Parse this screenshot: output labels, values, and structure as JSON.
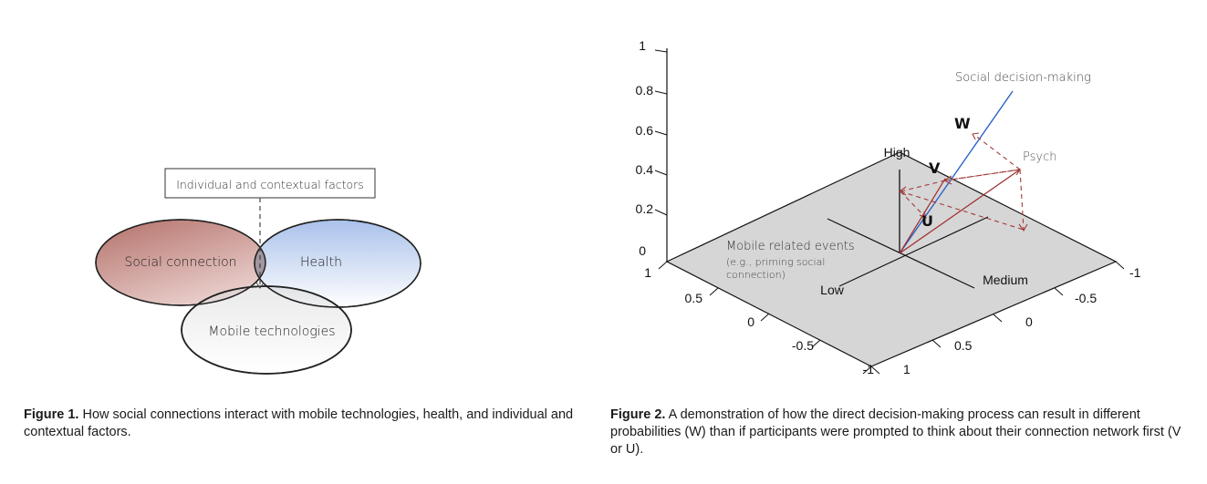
{
  "figure1": {
    "factors_box_label": "Individual and contextual factors",
    "circles": {
      "social": "Social connection",
      "health": "Health",
      "mobile": "Mobile technologies"
    },
    "colors": {
      "social": "#b97a74",
      "health": "#9fb8e3",
      "mobile": "#dedede"
    },
    "caption_label": "Figure 1.",
    "caption_text": " How social connections interact with mobile technologies, health, and individual and contextual factors."
  },
  "figure2": {
    "z_ticks": [
      "1",
      "0.8",
      "0.6",
      "0.4",
      "0.2",
      "0"
    ],
    "left_axis_ticks": [
      "1",
      "0.5",
      "0",
      "-0.5",
      "-1"
    ],
    "right_axis_ticks": [
      "-1",
      "-0.5",
      "0",
      "0.5",
      "1"
    ],
    "axis_labels": {
      "high": "High",
      "low": "Low",
      "medium": "Medium"
    },
    "plane_label_1": "Mobile related events",
    "plane_label_2": "(e.g., priming social",
    "plane_label_3": "connection)",
    "social_decision_label": "Social decision-making",
    "psych_label": "Psych",
    "vector_labels": {
      "w": "W",
      "v": "V",
      "u": "U"
    },
    "colors": {
      "social_line": "#2a63c9",
      "psych_vector": "#9e2a2a",
      "plane": "#d6d6d6"
    },
    "caption_label": "Figure 2.",
    "caption_text": " A demonstration of how the direct decision-making process can result in different probabilities (W) than if participants were prompted to think about their connection network first (V or U)."
  }
}
